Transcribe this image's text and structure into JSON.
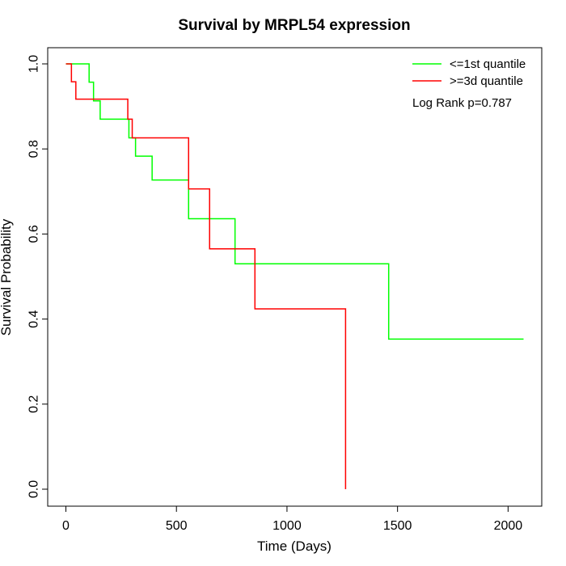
{
  "chart_data": {
    "type": "line",
    "subtype": "kaplan-meier-step",
    "title": "Survival by MRPL54 expression",
    "xlabel": "Time (Days)",
    "ylabel": "Survival Probability",
    "xlim": [
      0,
      2070
    ],
    "ylim": [
      0,
      1
    ],
    "x_ticks": [
      0,
      500,
      1000,
      1500,
      2000
    ],
    "y_ticks": [
      "0.0",
      "0.2",
      "0.4",
      "0.6",
      "0.8",
      "1.0"
    ],
    "grid": false,
    "legend_position": "top-right",
    "annotation": "Log Rank p=0.787",
    "series": [
      {
        "name": "<=1st quantile",
        "color": "#00ff00",
        "x": [
          0,
          105,
          125,
          155,
          285,
          315,
          390,
          555,
          765,
          1460,
          2070
        ],
        "y": [
          1.0,
          0.957,
          0.913,
          0.87,
          0.826,
          0.783,
          0.727,
          0.636,
          0.53,
          0.353,
          0.353
        ]
      },
      {
        "name": ">=3d quantile",
        "color": "#ff0000",
        "x": [
          0,
          25,
          45,
          280,
          300,
          555,
          650,
          855,
          1265,
          1265
        ],
        "y": [
          1.0,
          0.958,
          0.917,
          0.87,
          0.826,
          0.706,
          0.565,
          0.424,
          0.424,
          0.0
        ]
      }
    ]
  }
}
